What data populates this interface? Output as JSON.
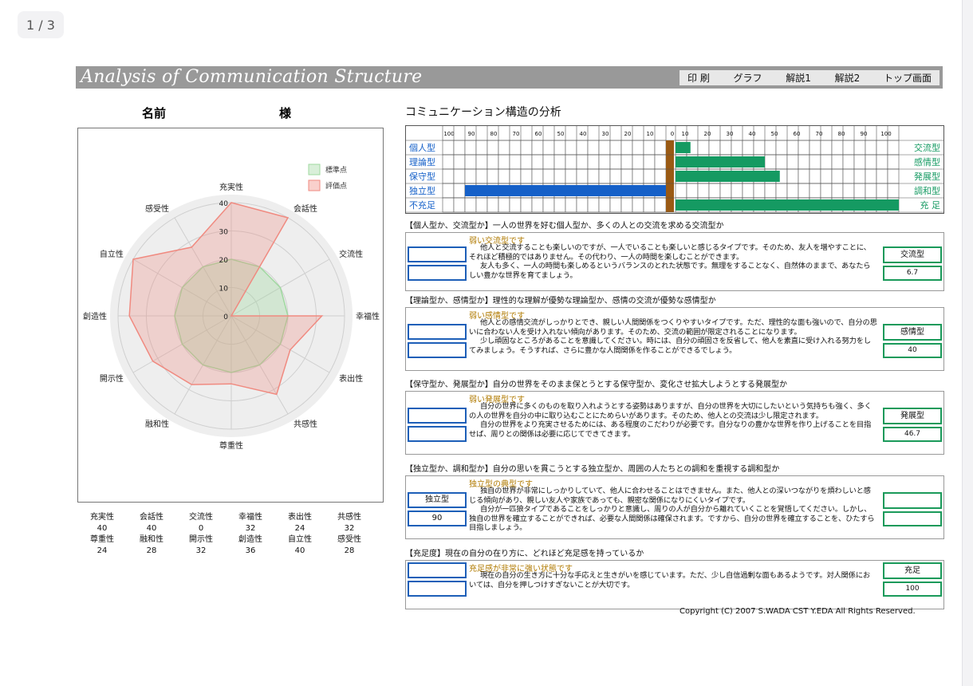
{
  "viewer": {
    "page_indicator": "1 / 3"
  },
  "header": {
    "title": "Analysis of Communication Structure",
    "menu": [
      "印 刷",
      "グラフ",
      "解説1",
      "解説2",
      "トップ画面"
    ]
  },
  "name_line": {
    "name_label": "名前",
    "honorific": "様"
  },
  "radar": {
    "legend": [
      "標準点",
      "評価点"
    ],
    "colors": {
      "standard": "#9fd89f",
      "evaluation": "#f08a80"
    },
    "ticks": [
      "0",
      "10",
      "20",
      "30",
      "40"
    ]
  },
  "chart_data": {
    "type": "radar",
    "categories": [
      "充実性",
      "会話性",
      "交流性",
      "幸福性",
      "表出性",
      "共感性",
      "尊重性",
      "融和性",
      "開示性",
      "創造性",
      "自立性",
      "感受性"
    ],
    "ylim": [
      0,
      40
    ],
    "series": [
      {
        "name": "標準点",
        "values": [
          20,
          20,
          20,
          20,
          20,
          20,
          20,
          20,
          20,
          20,
          20,
          20
        ]
      },
      {
        "name": "評価点",
        "values": [
          40,
          40,
          0,
          32,
          24,
          32,
          24,
          28,
          32,
          36,
          40,
          28
        ]
      }
    ]
  },
  "score_table": {
    "row1_labels": [
      "充実性",
      "会話性",
      "交流性",
      "幸福性",
      "表出性",
      "共感性"
    ],
    "row1_values": [
      "40",
      "40",
      "0",
      "32",
      "24",
      "32"
    ],
    "row2_labels": [
      "尊重性",
      "融和性",
      "開示性",
      "創造性",
      "自立性",
      "感受性"
    ],
    "row2_values": [
      "24",
      "28",
      "32",
      "36",
      "40",
      "28"
    ]
  },
  "analysis_title": "コミュニケーション構造の分析",
  "bar_chart": {
    "scale_left": [
      "100",
      "90",
      "80",
      "70",
      "60",
      "50",
      "40",
      "30",
      "20",
      "10",
      "0"
    ],
    "scale_right": [
      "10",
      "20",
      "30",
      "40",
      "50",
      "60",
      "70",
      "80",
      "90",
      "100"
    ],
    "colors": {
      "left": "#1560c8",
      "right": "#159a62",
      "center": "#9a5a14"
    },
    "rows": [
      {
        "left_label": "個人型",
        "right_label": "交流型",
        "left_value": 0,
        "right_value": 6.7
      },
      {
        "left_label": "理論型",
        "right_label": "感情型",
        "left_value": 0,
        "right_value": 40
      },
      {
        "left_label": "保守型",
        "right_label": "発展型",
        "left_value": 0,
        "right_value": 46.7
      },
      {
        "left_label": "独立型",
        "right_label": "調和型",
        "left_value": 90,
        "right_value": 0
      },
      {
        "left_label": "不充足",
        "right_label": "充 足",
        "left_value": 0,
        "right_value": 100
      }
    ]
  },
  "sections": [
    {
      "heading": "【個人型か、交流型か】一人の世界を好む個人型か、多くの人との交流を求める交流型か",
      "subtitle": "弱い交流型です",
      "paragraphs": [
        "他人と交流することも楽しいのですが、一人でいることも楽しいと感じるタイプです。そのため、友人を増やすことに、それほど積極的ではありません。その代わり、一人の時間を楽しむことができます。",
        "友人も多く、一人の時間も楽しめるというバランスのとれた状態です。無理をすることなく、自然体のままで、あなたらしい豊かな世界を育てましょう。"
      ],
      "left_type": "",
      "left_value": "",
      "right_type": "交流型",
      "right_value": "6.7"
    },
    {
      "heading": "【理論型か、感情型か】理性的な理解が優勢な理論型か、感情の交流が優勢な感情型か",
      "subtitle": "弱い感情型です",
      "paragraphs": [
        "他人との感情交流がしっかりとでき、親しい人間関係をつくりやすいタイプです。ただ、理性的な面も強いので、自分の思いに合わない人を受け入れない傾向があります。そのため、交流の範囲が限定されることになります。",
        "少し頑固なところがあることを意識してください。時には、自分の頑固さを反省して、他人を素直に受け入れる努力をしてみましょう。そうすれば、さらに豊かな人間関係を作ることができるでしょう。"
      ],
      "left_type": "",
      "left_value": "",
      "right_type": "感情型",
      "right_value": "40"
    },
    {
      "heading": "【保守型か、発展型か】自分の世界をそのまま保とうとする保守型か、変化させ拡大しようとする発展型か",
      "subtitle": "弱い発展型です",
      "paragraphs": [
        "自分の世界に多くのものを取り入れようとする姿勢はありますが、自分の世界を大切にしたいという気持ちも強く、多くの人の世界を自分の中に取り込むことにためらいがあります。そのため、他人との交流は少し限定されます。",
        "自分の世界をより充実させるためには、ある程度のこだわりが必要です。自分なりの豊かな世界を作り上げることを目指せば、周りとの関係は必要に応じてできてきます。"
      ],
      "left_type": "",
      "left_value": "",
      "right_type": "発展型",
      "right_value": "46.7"
    },
    {
      "heading": "【独立型か、調和型か】自分の思いを貫こうとする独立型か、周囲の人たちとの調和を重視する調和型か",
      "subtitle": "独立型の典型です",
      "paragraphs": [
        "独自の世界が非常にしっかりしていて、他人に合わせることはできません。また、他人との深いつながりを煩わしいと感じる傾向があり、親しい友人や家族であっても、親密な関係になりにくいタイプです。",
        "自分が一匹狼タイプであることをしっかりと意識し、周りの人が自分から離れていくことを覚悟してください。しかし、独自の世界を確立することができれば、必要な人間関係は確保されます。ですから、自分の世界を確立することを、ひたすら目指しましょう。"
      ],
      "left_type": "独立型",
      "left_value": "90",
      "right_type": "",
      "right_value": ""
    },
    {
      "heading": "【充足度】現在の自分の在り方に、どれほど充足感を持っているか",
      "subtitle": "充足感が非常に強い状態です",
      "paragraphs": [
        "現在の自分の生き方に十分な手応えと生きがいを感じています。ただ、少し自信過剰な面もあるようです。対人関係においては、自分を押しつけすぎないことが大切です。"
      ],
      "left_type": "",
      "left_value": "",
      "right_type": "充足",
      "right_value": "100"
    }
  ],
  "copyright": "Copyright (C) 2007 S.WADA CST Y.EDA All Rights Reserved."
}
